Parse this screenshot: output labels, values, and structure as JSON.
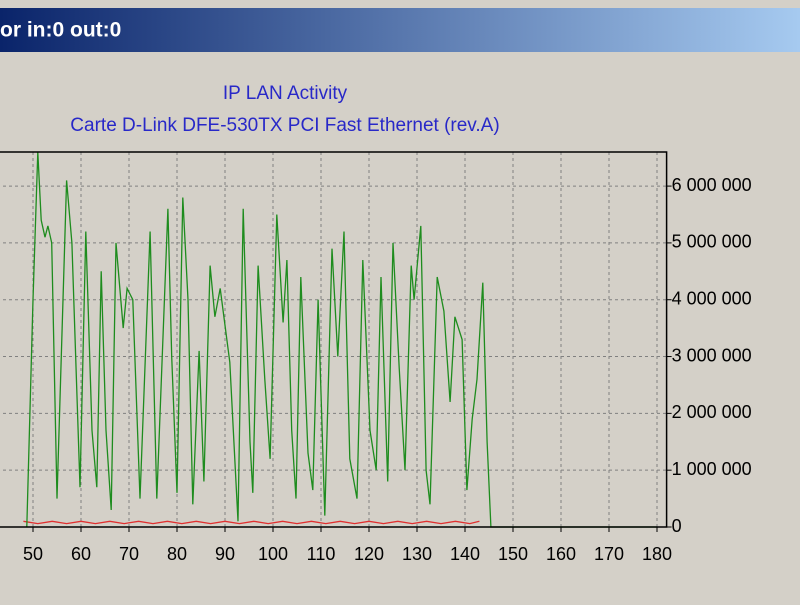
{
  "window": {
    "title": "or in:0 out:0"
  },
  "chart_data": {
    "type": "line",
    "title": "IP LAN Activity",
    "subtitle": "Carte D-Link DFE-530TX PCI Fast Ethernet (rev.A)",
    "xlim": [
      40,
      182
    ],
    "xticks": [
      50,
      60,
      70,
      80,
      90,
      100,
      110,
      120,
      130,
      140,
      150,
      160,
      170,
      180
    ],
    "ylim": [
      0,
      6600000
    ],
    "yticks": [
      0,
      {
        "value": 1000000,
        "label": "1 000 000"
      },
      {
        "value": 2000000,
        "label": "2 000 000"
      },
      {
        "value": 3000000,
        "label": "3 000 000"
      },
      {
        "value": 4000000,
        "label": "4 000 000"
      },
      {
        "value": 5000000,
        "label": "5 000 000"
      },
      {
        "value": 6000000,
        "label": "6 000 000"
      }
    ],
    "grid": true,
    "series": [
      {
        "color": "#1e8c1e",
        "x": [
          48.7,
          50,
          51,
          51.7,
          52.5,
          53.1,
          53.9,
          55,
          57,
          58.1,
          59.8,
          61,
          62.3,
          63.3,
          64.2,
          65.2,
          66.3,
          67.3,
          68.3,
          68.8,
          69.6,
          70.8,
          72.3,
          74.4,
          75.8,
          78.1,
          78.9,
          80,
          81.2,
          82.3,
          83.3,
          84.6,
          85.6,
          86.9,
          87.9,
          89,
          91,
          92.7,
          93.8,
          95.2,
          95.8,
          96.9,
          98.3,
          99.4,
          100.8,
          102.1,
          102.9,
          103.9,
          104.8,
          105.8,
          107.3,
          108.3,
          109.4,
          110.8,
          112.3,
          113.5,
          114.8,
          116,
          117.5,
          118.7,
          120.2,
          121.5,
          122.5,
          123.9,
          125,
          126.3,
          127.5,
          128.8,
          129.4,
          130.8,
          131.9,
          132.7,
          134.2,
          135.6,
          136.9,
          137.9,
          139.4,
          140.4,
          141.5,
          142.5,
          143.7,
          144.6,
          145.4,
          180
        ],
        "values": [
          0,
          4000000,
          6600000,
          5400000,
          5100000,
          5300000,
          5000000,
          500000,
          6100000,
          5000000,
          700000,
          5200000,
          1700000,
          700000,
          4500000,
          1700000,
          300000,
          5000000,
          4000000,
          3500000,
          4200000,
          4000000,
          500000,
          5200000,
          500000,
          5600000,
          3000000,
          600000,
          5800000,
          4000000,
          400000,
          3100000,
          800000,
          4600000,
          3700000,
          4200000,
          2900000,
          100000,
          5600000,
          1500000,
          600000,
          4600000,
          2600000,
          1200000,
          5500000,
          3600000,
          4700000,
          1700000,
          500000,
          4400000,
          1300000,
          650000,
          4000000,
          200000,
          4900000,
          3000000,
          5200000,
          1200000,
          500000,
          4700000,
          1700000,
          1000000,
          4400000,
          800000,
          5000000,
          2800000,
          1000000,
          4600000,
          4000000,
          5300000,
          1000000,
          400000,
          4400000,
          3800000,
          2200000,
          3700000,
          3300000,
          650000,
          1900000,
          2600000,
          4300000,
          1500000,
          0,
          0
        ]
      },
      {
        "color": "#e03030",
        "x": [
          48,
          51,
          54,
          57,
          60,
          63,
          66,
          69,
          72,
          75,
          78,
          81,
          84,
          87,
          90,
          93,
          96,
          99,
          102,
          105,
          108,
          111,
          114,
          117,
          120,
          123,
          126,
          129,
          132,
          135,
          138,
          141,
          143
        ],
        "values": [
          100000,
          60000,
          100000,
          60000,
          100000,
          60000,
          100000,
          60000,
          100000,
          60000,
          100000,
          60000,
          100000,
          60000,
          100000,
          60000,
          100000,
          60000,
          100000,
          60000,
          100000,
          60000,
          100000,
          60000,
          100000,
          60000,
          100000,
          60000,
          100000,
          60000,
          100000,
          60000,
          100000
        ]
      }
    ]
  }
}
